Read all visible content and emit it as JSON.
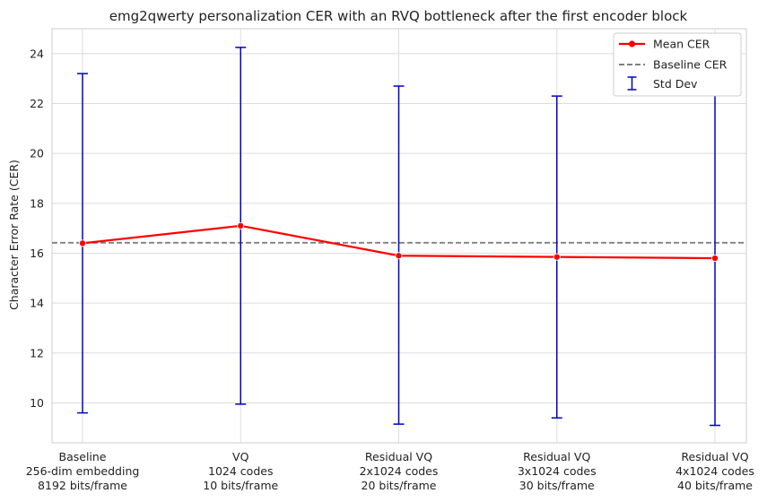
{
  "chart_data": {
    "type": "line",
    "title": "emg2qwerty personalization CER with an RVQ bottleneck after the first encoder block",
    "xlabel": "",
    "ylabel": "Character Error Rate (CER)",
    "ylim": [
      8.4,
      25.0
    ],
    "yticks": [
      10,
      12,
      14,
      16,
      18,
      20,
      22,
      24
    ],
    "categories": [
      [
        "Baseline",
        "256-dim embedding",
        "8192 bits/frame"
      ],
      [
        "VQ",
        "1024 codes",
        "10 bits/frame"
      ],
      [
        "Residual VQ",
        "2x1024 codes",
        "20 bits/frame"
      ],
      [
        "Residual VQ",
        "3x1024 codes",
        "30 bits/frame"
      ],
      [
        "Residual VQ",
        "4x1024 codes",
        "40 bits/frame"
      ]
    ],
    "series": [
      {
        "name": "Mean CER",
        "values": [
          16.4,
          17.1,
          15.9,
          15.85,
          15.8
        ],
        "color": "#ff0000"
      }
    ],
    "error_bars": {
      "name": "Std Dev",
      "lower": [
        9.6,
        9.95,
        9.15,
        9.4,
        9.1
      ],
      "upper": [
        23.2,
        24.25,
        22.7,
        22.3,
        22.5
      ],
      "color": "#0000cc"
    },
    "reference_line": {
      "name": "Baseline CER",
      "value": 16.42,
      "color": "#808080"
    },
    "grid": true,
    "legend_position": "top-right"
  }
}
